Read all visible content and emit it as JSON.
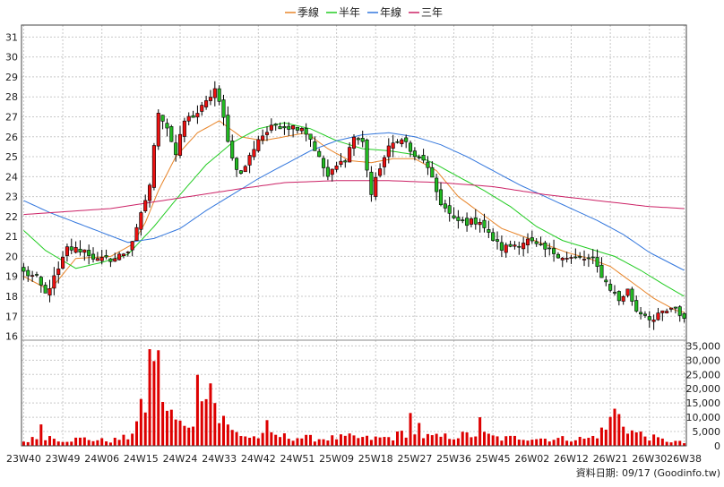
{
  "chart_data": {
    "type": "candlestick",
    "legend": {
      "position": "top-center",
      "entries": [
        {
          "name": "季線",
          "color": "#e8852a"
        },
        {
          "name": "半年",
          "color": "#22cc22"
        },
        {
          "name": "年線",
          "color": "#3377dd"
        },
        {
          "name": "三年",
          "color": "#cc2266"
        }
      ]
    },
    "price_axis": {
      "ylim": [
        15.8,
        31.6
      ],
      "ticks": [
        16,
        17,
        18,
        19,
        20,
        21,
        22,
        23,
        24,
        25,
        26,
        27,
        28,
        29,
        30,
        31
      ],
      "side": "left"
    },
    "volume_axis": {
      "ylim": [
        0,
        37000
      ],
      "ticks": [
        0,
        5000,
        10000,
        15000,
        20000,
        25000,
        30000,
        35000
      ],
      "tick_labels": [
        "0",
        "5,000",
        "10,000",
        "15,000",
        "20,000",
        "25,000",
        "30,000",
        "35,000"
      ],
      "side": "right"
    },
    "x_ticks": [
      {
        "label": "23W40",
        "index": 0
      },
      {
        "label": "23W49",
        "index": 9
      },
      {
        "label": "24W06",
        "index": 18
      },
      {
        "label": "24W15",
        "index": 27
      },
      {
        "label": "24W24",
        "index": 36
      },
      {
        "label": "24W33",
        "index": 45
      },
      {
        "label": "24W42",
        "index": 54
      },
      {
        "label": "24W51",
        "index": 63
      },
      {
        "label": "25W09",
        "index": 72
      },
      {
        "label": "25W18",
        "index": 81
      },
      {
        "label": "25W27",
        "index": 90
      },
      {
        "label": "25W36",
        "index": 99
      },
      {
        "label": "25W45",
        "index": 108
      },
      {
        "label": "26W02",
        "index": 117
      },
      {
        "label": "26W12",
        "index": 126
      },
      {
        "label": "26W21",
        "index": 135
      },
      {
        "label": "26W30",
        "index": 144
      },
      {
        "label": "26W38",
        "index": 152
      }
    ],
    "n": 153,
    "grid": true,
    "close_anchors": [
      [
        0,
        19.2
      ],
      [
        3,
        18.9
      ],
      [
        5,
        18.1
      ],
      [
        8,
        19.3
      ],
      [
        10,
        20.4
      ],
      [
        14,
        20.3
      ],
      [
        17,
        19.8
      ],
      [
        21,
        19.9
      ],
      [
        24,
        20.3
      ],
      [
        26,
        21.3
      ],
      [
        29,
        23.6
      ],
      [
        31,
        27.3
      ],
      [
        33,
        26.5
      ],
      [
        35,
        25.1
      ],
      [
        37,
        26.8
      ],
      [
        40,
        27.2
      ],
      [
        42,
        27.7
      ],
      [
        44,
        28.4
      ],
      [
        46,
        26.9
      ],
      [
        48,
        24.9
      ],
      [
        50,
        24.1
      ],
      [
        54,
        25.9
      ],
      [
        58,
        26.6
      ],
      [
        61,
        26.5
      ],
      [
        64,
        26.5
      ],
      [
        66,
        25.9
      ],
      [
        68,
        24.9
      ],
      [
        70,
        24.0
      ],
      [
        72,
        24.5
      ],
      [
        74,
        24.9
      ],
      [
        76,
        26.0
      ],
      [
        78,
        25.7
      ],
      [
        80,
        23.1
      ],
      [
        82,
        24.5
      ],
      [
        84,
        25.4
      ],
      [
        86,
        25.9
      ],
      [
        88,
        25.7
      ],
      [
        90,
        24.9
      ],
      [
        92,
        24.9
      ],
      [
        94,
        23.8
      ],
      [
        96,
        22.7
      ],
      [
        99,
        21.8
      ],
      [
        102,
        21.7
      ],
      [
        105,
        21.8
      ],
      [
        107,
        21.1
      ],
      [
        110,
        20.4
      ],
      [
        113,
        20.6
      ],
      [
        116,
        20.8
      ],
      [
        119,
        20.4
      ],
      [
        122,
        20.2
      ],
      [
        125,
        19.9
      ],
      [
        128,
        19.9
      ],
      [
        131,
        19.8
      ],
      [
        134,
        18.7
      ],
      [
        137,
        17.8
      ],
      [
        139,
        18.3
      ],
      [
        141,
        17.3
      ],
      [
        143,
        17.1
      ],
      [
        145,
        16.8
      ],
      [
        147,
        17.2
      ],
      [
        149,
        17.3
      ],
      [
        150,
        17.3
      ],
      [
        152,
        16.9
      ]
    ],
    "volume_anchors": [
      [
        0,
        1500
      ],
      [
        5,
        3500
      ],
      [
        9,
        2000
      ],
      [
        14,
        2500
      ],
      [
        17,
        2000
      ],
      [
        20,
        1800
      ],
      [
        24,
        3000
      ],
      [
        26,
        8000
      ],
      [
        28,
        15000
      ],
      [
        29,
        28000
      ],
      [
        30,
        36000
      ],
      [
        31,
        26000
      ],
      [
        33,
        12000
      ],
      [
        35,
        9000
      ],
      [
        37,
        6000
      ],
      [
        39,
        10000
      ],
      [
        40,
        20000
      ],
      [
        41,
        27000
      ],
      [
        43,
        22000
      ],
      [
        45,
        9000
      ],
      [
        48,
        5000
      ],
      [
        52,
        3000
      ],
      [
        58,
        3500
      ],
      [
        62,
        3000
      ],
      [
        68,
        2500
      ],
      [
        75,
        3000
      ],
      [
        80,
        2500
      ],
      [
        85,
        3000
      ],
      [
        88,
        5000
      ],
      [
        90,
        3500
      ],
      [
        95,
        3000
      ],
      [
        100,
        3500
      ],
      [
        105,
        4000
      ],
      [
        110,
        2500
      ],
      [
        115,
        3000
      ],
      [
        120,
        2500
      ],
      [
        125,
        2500
      ],
      [
        130,
        2500
      ],
      [
        132,
        4000
      ],
      [
        134,
        6000
      ],
      [
        136,
        12000
      ],
      [
        138,
        8000
      ],
      [
        140,
        5000
      ],
      [
        143,
        3500
      ],
      [
        147,
        2000
      ],
      [
        150,
        1500
      ],
      [
        152,
        1000
      ]
    ],
    "volume_spikes": [
      [
        4,
        7500
      ],
      [
        46,
        10500
      ],
      [
        56,
        9000
      ],
      [
        89,
        11500
      ],
      [
        91,
        8000
      ],
      [
        105,
        10000
      ],
      [
        136,
        13000
      ]
    ],
    "moving_averages": [
      {
        "name": "季線",
        "anchors": [
          [
            0,
            19.0
          ],
          [
            6,
            18.3
          ],
          [
            12,
            19.9
          ],
          [
            20,
            20.0
          ],
          [
            25,
            20.6
          ],
          [
            28,
            21.7
          ],
          [
            31,
            23.3
          ],
          [
            35,
            25.0
          ],
          [
            40,
            26.2
          ],
          [
            45,
            26.8
          ],
          [
            50,
            26.0
          ],
          [
            55,
            25.8
          ],
          [
            60,
            26.0
          ],
          [
            65,
            26.2
          ],
          [
            70,
            25.4
          ],
          [
            75,
            24.8
          ],
          [
            80,
            24.7
          ],
          [
            85,
            24.9
          ],
          [
            90,
            24.9
          ],
          [
            95,
            24.3
          ],
          [
            100,
            23.0
          ],
          [
            105,
            22.2
          ],
          [
            110,
            21.4
          ],
          [
            115,
            21.0
          ],
          [
            120,
            20.6
          ],
          [
            125,
            20.2
          ],
          [
            130,
            19.9
          ],
          [
            135,
            19.5
          ],
          [
            140,
            18.7
          ],
          [
            145,
            17.9
          ],
          [
            150,
            17.3
          ],
          [
            152,
            17.2
          ]
        ]
      },
      {
        "name": "半年",
        "anchors": [
          [
            0,
            21.3
          ],
          [
            5,
            20.3
          ],
          [
            12,
            19.4
          ],
          [
            18,
            19.7
          ],
          [
            24,
            20.1
          ],
          [
            30,
            21.5
          ],
          [
            36,
            23.1
          ],
          [
            42,
            24.6
          ],
          [
            48,
            25.7
          ],
          [
            54,
            26.4
          ],
          [
            60,
            26.7
          ],
          [
            66,
            26.4
          ],
          [
            72,
            25.8
          ],
          [
            78,
            25.4
          ],
          [
            84,
            25.3
          ],
          [
            90,
            25.1
          ],
          [
            95,
            24.6
          ],
          [
            100,
            24.0
          ],
          [
            106,
            23.3
          ],
          [
            112,
            22.5
          ],
          [
            118,
            21.5
          ],
          [
            124,
            20.8
          ],
          [
            130,
            20.4
          ],
          [
            136,
            20.0
          ],
          [
            142,
            19.3
          ],
          [
            148,
            18.5
          ],
          [
            152,
            18.0
          ]
        ]
      },
      {
        "name": "年線",
        "anchors": [
          [
            0,
            22.8
          ],
          [
            6,
            22.2
          ],
          [
            12,
            21.7
          ],
          [
            18,
            21.2
          ],
          [
            24,
            20.7
          ],
          [
            30,
            20.9
          ],
          [
            36,
            21.4
          ],
          [
            42,
            22.3
          ],
          [
            48,
            23.1
          ],
          [
            54,
            23.9
          ],
          [
            60,
            24.6
          ],
          [
            66,
            25.3
          ],
          [
            72,
            25.8
          ],
          [
            78,
            26.1
          ],
          [
            84,
            26.2
          ],
          [
            90,
            26.0
          ],
          [
            96,
            25.6
          ],
          [
            102,
            25.0
          ],
          [
            108,
            24.3
          ],
          [
            114,
            23.6
          ],
          [
            120,
            23.0
          ],
          [
            126,
            22.4
          ],
          [
            132,
            21.8
          ],
          [
            138,
            21.1
          ],
          [
            144,
            20.2
          ],
          [
            152,
            19.3
          ]
        ]
      },
      {
        "name": "三年",
        "anchors": [
          [
            0,
            22.1
          ],
          [
            20,
            22.4
          ],
          [
            35,
            22.9
          ],
          [
            50,
            23.4
          ],
          [
            60,
            23.7
          ],
          [
            72,
            23.8
          ],
          [
            84,
            23.8
          ],
          [
            96,
            23.7
          ],
          [
            108,
            23.5
          ],
          [
            120,
            23.1
          ],
          [
            132,
            22.8
          ],
          [
            144,
            22.5
          ],
          [
            152,
            22.4
          ]
        ]
      }
    ]
  },
  "footer": {
    "date_label": "資料日期: 09/17  (Goodinfo.tw)"
  }
}
